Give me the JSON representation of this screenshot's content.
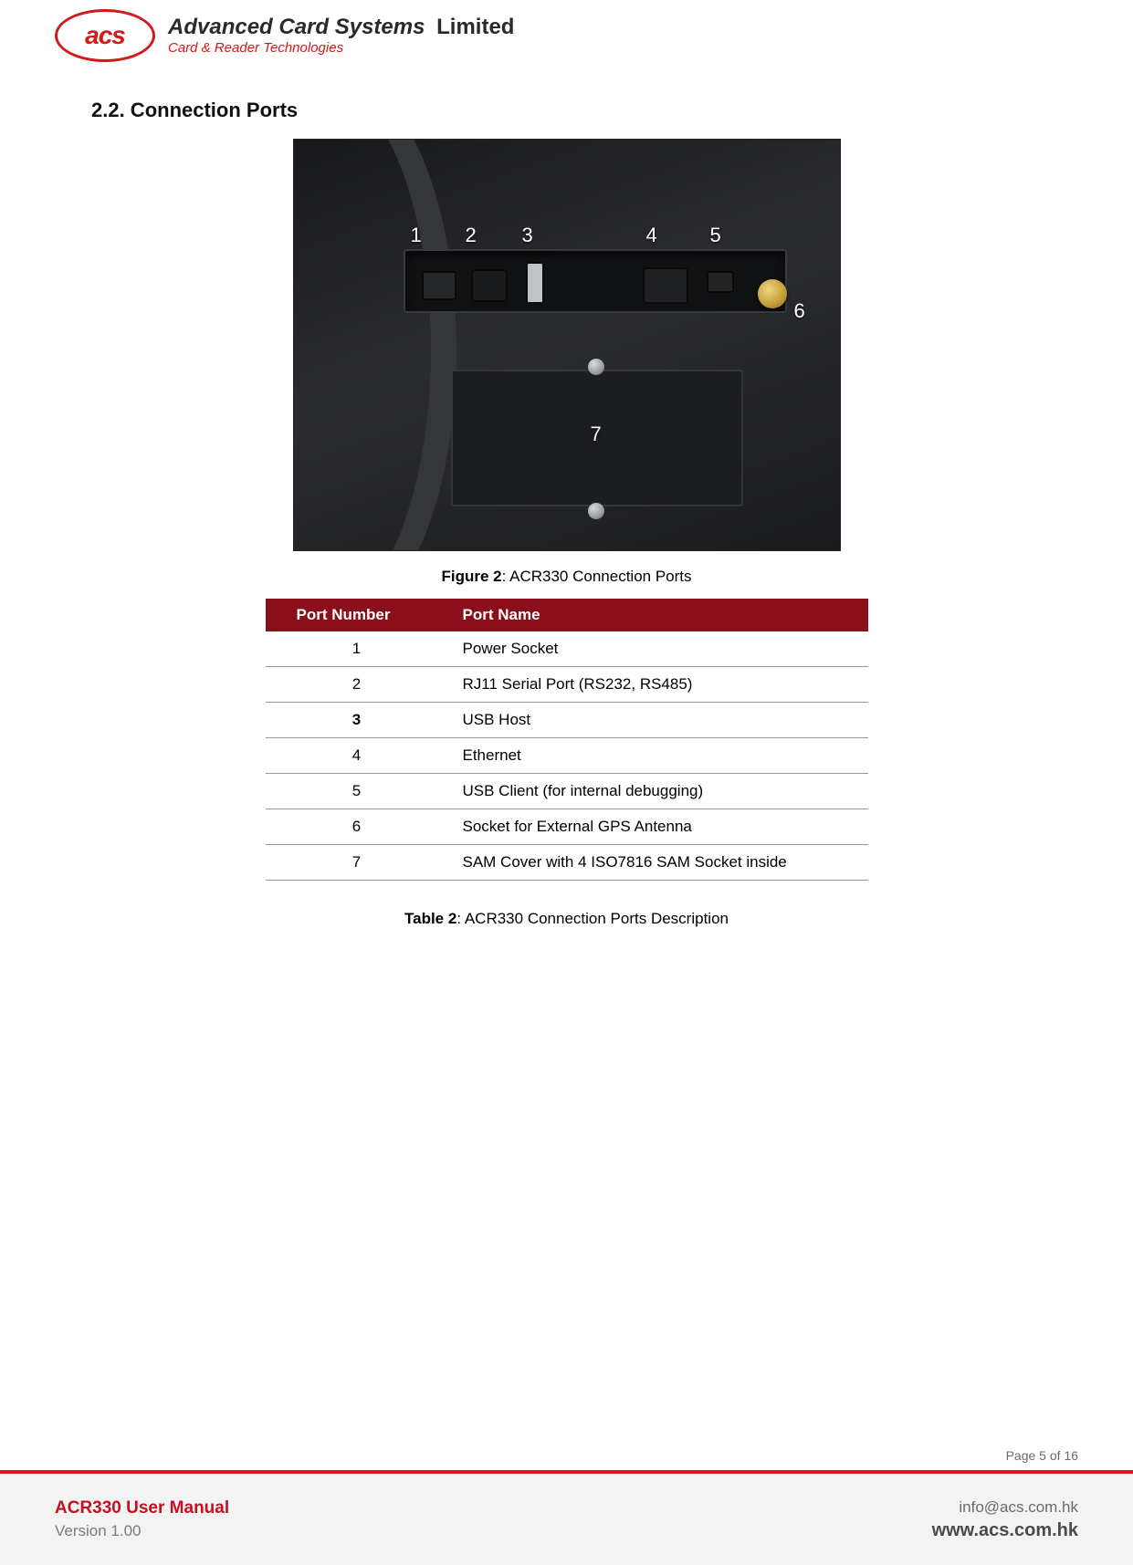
{
  "header": {
    "logo_text": "acs",
    "company_main": "Advanced Card Systems",
    "company_limited": "Limited",
    "company_sub": "Card & Reader Technologies"
  },
  "section": {
    "heading": "2.2. Connection Ports"
  },
  "figure": {
    "labels": {
      "l1": "1",
      "l2": "2",
      "l3": "3",
      "l4": "4",
      "l5": "5",
      "l6": "6",
      "l7": "7"
    },
    "caption_bold": "Figure 2",
    "caption_rest": ": ACR330 Connection Ports"
  },
  "table": {
    "columns": [
      "Port Number",
      "Port Name"
    ],
    "rows": [
      {
        "num": "1",
        "name": "Power Socket",
        "bold": false
      },
      {
        "num": "2",
        "name": "RJ11 Serial Port (RS232, RS485)",
        "bold": false
      },
      {
        "num": "3",
        "name": "USB Host",
        "bold": true
      },
      {
        "num": "4",
        "name": "Ethernet",
        "bold": false
      },
      {
        "num": "5",
        "name": "USB Client (for internal debugging)",
        "bold": false
      },
      {
        "num": "6",
        "name": "Socket for External GPS Antenna",
        "bold": false
      },
      {
        "num": "7",
        "name": "SAM Cover with 4 ISO7816 SAM Socket inside",
        "bold": false
      }
    ],
    "caption_bold": "Table 2",
    "caption_rest": ": ACR330 Connection Ports Description",
    "header_bg": "#8a0f1a",
    "header_fg": "#ffffff",
    "border_color": "#9a9a9a"
  },
  "page_number": "Page 5 of 16",
  "footer": {
    "doc_title": "ACR330 User Manual",
    "doc_version": "Version 1.00",
    "email": "info@acs.com.hk",
    "website": "www.acs.com.hk",
    "divider_color": "#d11a1a",
    "bg": "#f3f3f3"
  }
}
